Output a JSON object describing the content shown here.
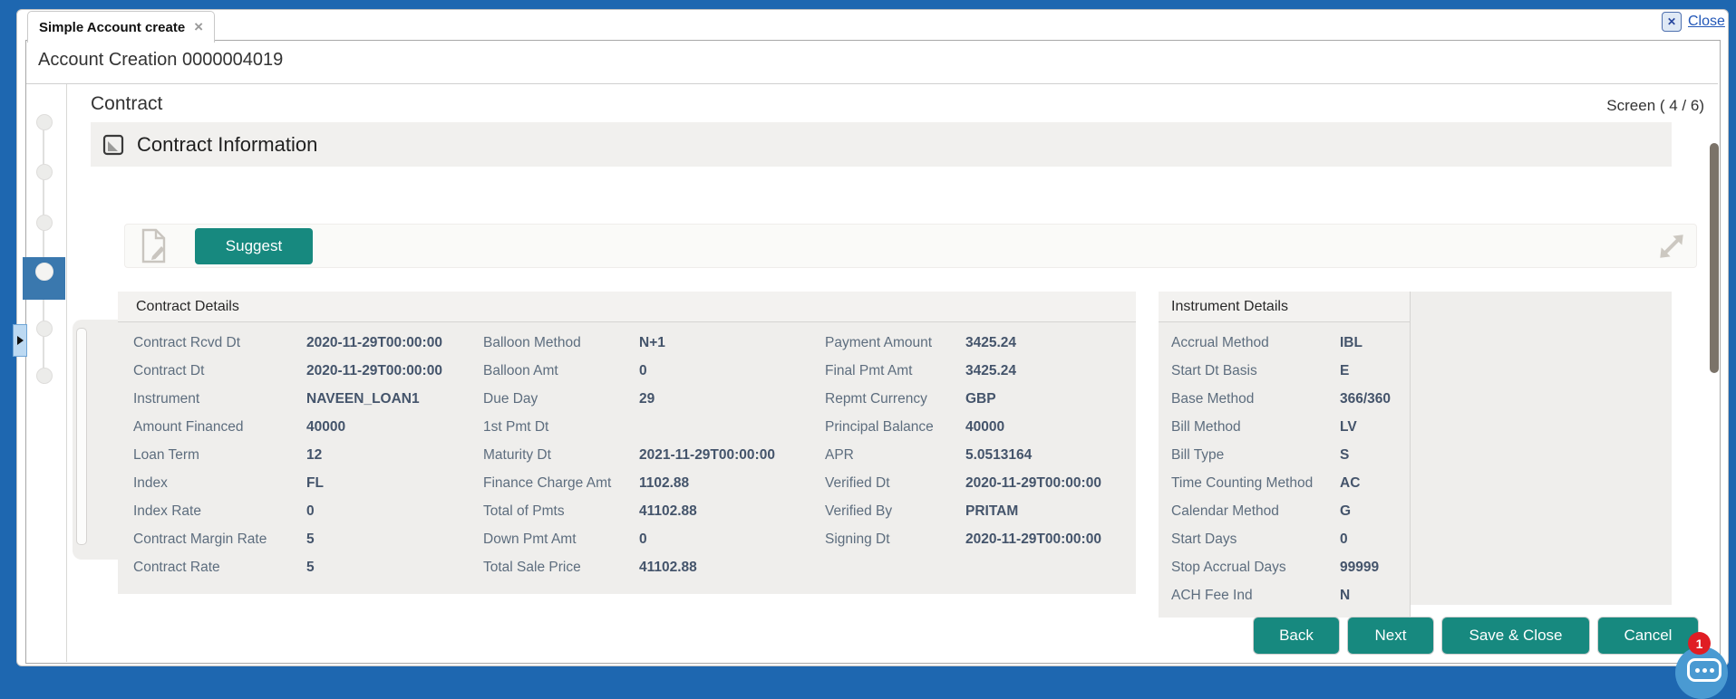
{
  "tab": {
    "title": "Simple Account create",
    "close_glyph": "×"
  },
  "window_controls": {
    "close_icon_glyph": "✕",
    "close_label": "Close"
  },
  "header": {
    "title": "Account Creation 0000004019"
  },
  "content_header": {
    "heading": "Contract",
    "screen_indicator": "Screen ( 4 / 6)"
  },
  "section": {
    "title": "Contract Information"
  },
  "toolbar": {
    "suggest": "Suggest"
  },
  "stepper": {
    "count": 6,
    "active_index": 3
  },
  "panels": {
    "contract_details": {
      "title": "Contract Details",
      "columns": [
        [
          {
            "label": "Contract Rcvd Dt",
            "value": "2020-11-29T00:00:00"
          },
          {
            "label": "Contract Dt",
            "value": "2020-11-29T00:00:00"
          },
          {
            "label": "Instrument",
            "value": "NAVEEN_LOAN1"
          },
          {
            "label": "Amount Financed",
            "value": "40000"
          },
          {
            "label": "Loan Term",
            "value": "12"
          },
          {
            "label": "Index",
            "value": "FL"
          },
          {
            "label": "Index Rate",
            "value": "0"
          },
          {
            "label": "Contract Margin Rate",
            "value": "5"
          },
          {
            "label": "Contract Rate",
            "value": "5"
          }
        ],
        [
          {
            "label": "Balloon Method",
            "value": "N+1"
          },
          {
            "label": "Balloon Amt",
            "value": "0"
          },
          {
            "label": "Due Day",
            "value": "29"
          },
          {
            "label": "1st Pmt Dt",
            "value": ""
          },
          {
            "label": "Maturity Dt",
            "value": "2021-11-29T00:00:00"
          },
          {
            "label": "Finance Charge Amt",
            "value": "1102.88"
          },
          {
            "label": "Total of Pmts",
            "value": "41102.88"
          },
          {
            "label": "Down Pmt Amt",
            "value": "0"
          },
          {
            "label": "Total Sale Price",
            "value": "41102.88"
          }
        ],
        [
          {
            "label": "Payment Amount",
            "value": "3425.24"
          },
          {
            "label": "Final Pmt Amt",
            "value": "3425.24"
          },
          {
            "label": "Repmt Currency",
            "value": "GBP"
          },
          {
            "label": "Principal Balance",
            "value": "40000"
          },
          {
            "label": "APR",
            "value": "5.0513164"
          },
          {
            "label": "Verified Dt",
            "value": "2020-11-29T00:00:00"
          },
          {
            "label": "Verified By",
            "value": "PRITAM"
          },
          {
            "label": "Signing Dt",
            "value": "2020-11-29T00:00:00"
          }
        ]
      ]
    },
    "instrument_details": {
      "title": "Instrument Details",
      "rows": [
        {
          "label": "Accrual Method",
          "value": "IBL"
        },
        {
          "label": "Start Dt Basis",
          "value": "E"
        },
        {
          "label": "Base Method",
          "value": "366/360"
        },
        {
          "label": "Bill Method",
          "value": "LV"
        },
        {
          "label": "Bill Type",
          "value": "S"
        },
        {
          "label": "Time Counting Method",
          "value": "AC"
        },
        {
          "label": "Calendar Method",
          "value": "G"
        },
        {
          "label": "Start Days",
          "value": "0"
        },
        {
          "label": "Stop Accrual Days",
          "value": "99999"
        },
        {
          "label": "ACH Fee Ind",
          "value": "N"
        }
      ]
    }
  },
  "footer": {
    "back": "Back",
    "next": "Next",
    "save_close": "Save & Close",
    "cancel": "Cancel"
  },
  "chat": {
    "badge_count": "1"
  },
  "colors": {
    "accent_blue": "#1e67b0",
    "teal": "#17897f",
    "active_step_blue": "#3a78ae",
    "label_text": "#5d6d7e",
    "value_text": "#44546b",
    "badge_red": "#e01d24",
    "chat_blue": "#4a9ad2"
  }
}
